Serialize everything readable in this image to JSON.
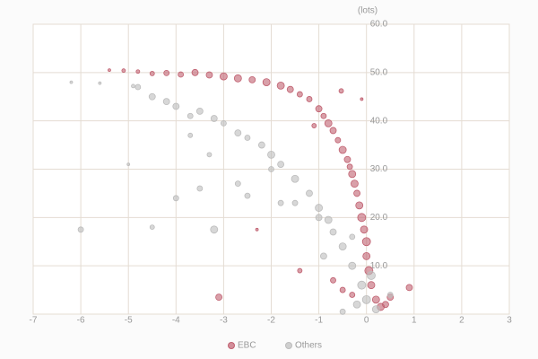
{
  "chart_data": {
    "type": "scatter",
    "y_label": "(lots)",
    "xlim": [
      -7,
      3
    ],
    "xticks": [
      -7,
      -6,
      -5,
      -4,
      -3,
      -2,
      -1,
      0,
      1,
      2,
      3
    ],
    "ylim": [
      0,
      60
    ],
    "yticks": [
      {
        "value": 10,
        "label": "10.0"
      },
      {
        "value": 20,
        "label": "20.0"
      },
      {
        "value": 30,
        "label": "30.0"
      },
      {
        "value": 40,
        "label": "40.0"
      },
      {
        "value": 50,
        "label": "50.0"
      },
      {
        "value": 60,
        "label": "60.0"
      }
    ],
    "grid": true,
    "legend": "bottom",
    "series": [
      {
        "name": "EBC",
        "color": "#c06070",
        "x": [
          -5.4,
          -5.1,
          -4.8,
          -4.5,
          -4.2,
          -3.9,
          -3.6,
          -3.3,
          -3.0,
          -2.7,
          -2.4,
          -2.1,
          -1.8,
          -1.6,
          -1.4,
          -1.2,
          -1.0,
          -0.9,
          -0.8,
          -0.7,
          -0.6,
          -0.5,
          -0.4,
          -0.35,
          -0.3,
          -0.25,
          -0.2,
          -0.15,
          -0.1,
          -0.05,
          0.0,
          0.0,
          0.05,
          0.1,
          0.2,
          0.4,
          0.5,
          0.9,
          -3.1,
          -2.3,
          -1.4,
          -0.7,
          -0.5,
          -0.53,
          -0.1,
          -0.3,
          0.3,
          -1.1
        ],
        "values": [
          50.5,
          50.4,
          50.2,
          49.8,
          49.9,
          49.6,
          50.0,
          49.5,
          49.2,
          48.8,
          48.5,
          48.0,
          47.3,
          46.5,
          45.5,
          44.5,
          42.5,
          41.0,
          39.5,
          38.0,
          36.0,
          34.0,
          32.0,
          30.5,
          29.0,
          27.0,
          25.0,
          22.5,
          20.0,
          17.5,
          15.0,
          12.0,
          9.0,
          6.0,
          3.0,
          2.0,
          3.5,
          5.5,
          3.5,
          17.5,
          9.0,
          7.0,
          5.0,
          46.2,
          44.5,
          4.0,
          1.5,
          39.0
        ],
        "sizes": [
          1.5,
          2,
          2,
          2.5,
          3,
          3,
          3.5,
          3.5,
          4,
          4,
          3.5,
          4,
          4,
          3.5,
          3,
          3,
          3.5,
          3,
          4,
          3.5,
          3,
          4,
          3.5,
          3,
          4,
          4,
          3.5,
          4,
          4.5,
          4,
          4.5,
          4,
          4.5,
          4,
          4,
          3.5,
          3.5,
          3.5,
          3.5,
          1.5,
          2.5,
          3,
          3,
          2.5,
          1.5,
          3,
          4,
          2.5
        ]
      },
      {
        "name": "Others",
        "color": "#bcbcbc",
        "x": [
          -6.2,
          -6.0,
          -5.0,
          -4.8,
          -4.5,
          -4.2,
          -4.0,
          -3.7,
          -3.5,
          -3.2,
          -3.0,
          -2.7,
          -2.5,
          -2.2,
          -2.0,
          -1.8,
          -1.5,
          -1.2,
          -1.0,
          -0.8,
          -0.7,
          -0.5,
          -0.3,
          -0.1,
          0.0,
          0.2,
          -0.5,
          -3.2,
          -4.0,
          -3.5,
          -2.7,
          -4.5,
          -3.7,
          -3.3,
          -1.8,
          -1.5,
          -2.5,
          -0.3,
          0.5,
          -0.9,
          -5.6,
          -4.9,
          -2.0,
          -1.0,
          0.1,
          -0.2
        ],
        "values": [
          48.0,
          17.5,
          31.0,
          47.0,
          45.0,
          44.0,
          43.0,
          41.0,
          42.0,
          40.5,
          39.5,
          37.5,
          36.5,
          35.0,
          33.0,
          31.0,
          28.0,
          25.0,
          22.0,
          19.5,
          17.0,
          14.0,
          10.0,
          6.0,
          3.0,
          1.0,
          0.5,
          17.5,
          24.0,
          26.0,
          27.0,
          18.0,
          37.0,
          33.0,
          23.0,
          23.0,
          24.5,
          16.0,
          4.0,
          12.0,
          47.8,
          47.2,
          30.0,
          20.0,
          8.0,
          2.0
        ],
        "sizes": [
          1.5,
          3,
          1.5,
          3,
          3.5,
          3.5,
          3.5,
          3,
          3.5,
          3.5,
          3,
          3.5,
          3,
          3.5,
          4,
          3.5,
          4,
          3.5,
          4,
          4,
          3.5,
          4,
          4,
          4.5,
          4.5,
          4,
          3,
          4,
          3,
          3,
          3,
          2.5,
          2.5,
          2.5,
          3,
          3,
          3,
          3,
          3,
          3.5,
          1.5,
          2,
          3,
          3.5,
          4.5,
          4
        ]
      }
    ]
  }
}
